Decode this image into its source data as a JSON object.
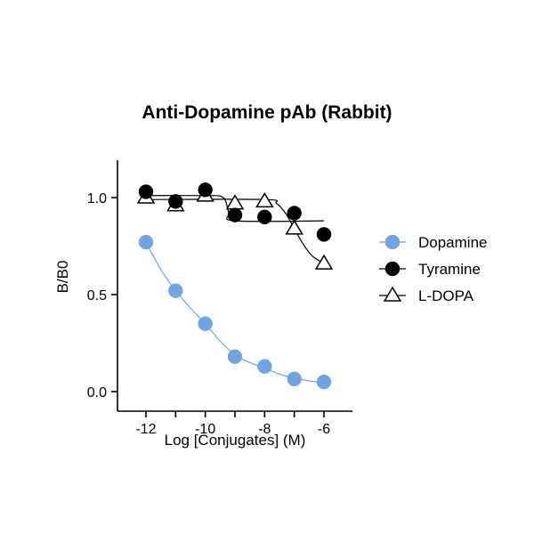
{
  "chart_data": {
    "type": "scatter",
    "title": "Anti-Dopamine pAb (Rabbit)",
    "xlabel": "Log [Conjugates] (M)",
    "ylabel": "B/B0",
    "xlim": [
      -13,
      -5.5
    ],
    "ylim": [
      0,
      1.2
    ],
    "xticks": [
      -12,
      -10,
      -8,
      -6
    ],
    "xtick_labels": [
      "-12",
      "-10",
      "-8",
      "-6"
    ],
    "yticks": [
      0.0,
      0.5,
      1.0
    ],
    "ytick_labels": [
      "0.0",
      "0.5",
      "1.0"
    ],
    "grid": false,
    "legend_position": "right",
    "series": [
      {
        "name": "Dopamine",
        "marker": "filled-circle",
        "color": "#6fa5e0",
        "x": [
          -12,
          -11,
          -10,
          -9,
          -8,
          -7,
          -6
        ],
        "y": [
          0.77,
          0.52,
          0.35,
          0.18,
          0.13,
          0.065,
          0.05
        ],
        "fit_x": [
          -12,
          -11.5,
          -11,
          -10.5,
          -10,
          -9.5,
          -9,
          -8.5,
          -8,
          -7.5,
          -7,
          -6.5,
          -6
        ],
        "fit_y": [
          0.77,
          0.63,
          0.52,
          0.43,
          0.35,
          0.26,
          0.19,
          0.15,
          0.12,
          0.09,
          0.07,
          0.055,
          0.045
        ]
      },
      {
        "name": "Tyramine",
        "marker": "filled-circle",
        "color": "#000000",
        "x": [
          -12,
          -11,
          -10,
          -9,
          -8,
          -7,
          -6
        ],
        "y": [
          1.03,
          0.98,
          1.04,
          0.91,
          0.9,
          0.92,
          0.81
        ],
        "fit_x": [
          -12,
          -10,
          -9.4,
          -9.2,
          -9.0,
          -6
        ],
        "fit_y": [
          1.01,
          1.01,
          1.0,
          0.92,
          0.88,
          0.88
        ]
      },
      {
        "name": "L-DOPA",
        "marker": "open-triangle",
        "color": "#000000",
        "x": [
          -12,
          -11,
          -10,
          -9,
          -8,
          -7,
          -6
        ],
        "y": [
          1.0,
          0.96,
          1.01,
          0.97,
          0.98,
          0.84,
          0.66
        ],
        "fit_x": [
          -12,
          -8,
          -7.6,
          -7.3,
          -7,
          -6.7,
          -6.4,
          -6
        ],
        "fit_y": [
          0.99,
          0.99,
          0.97,
          0.92,
          0.84,
          0.76,
          0.7,
          0.66
        ]
      }
    ]
  }
}
